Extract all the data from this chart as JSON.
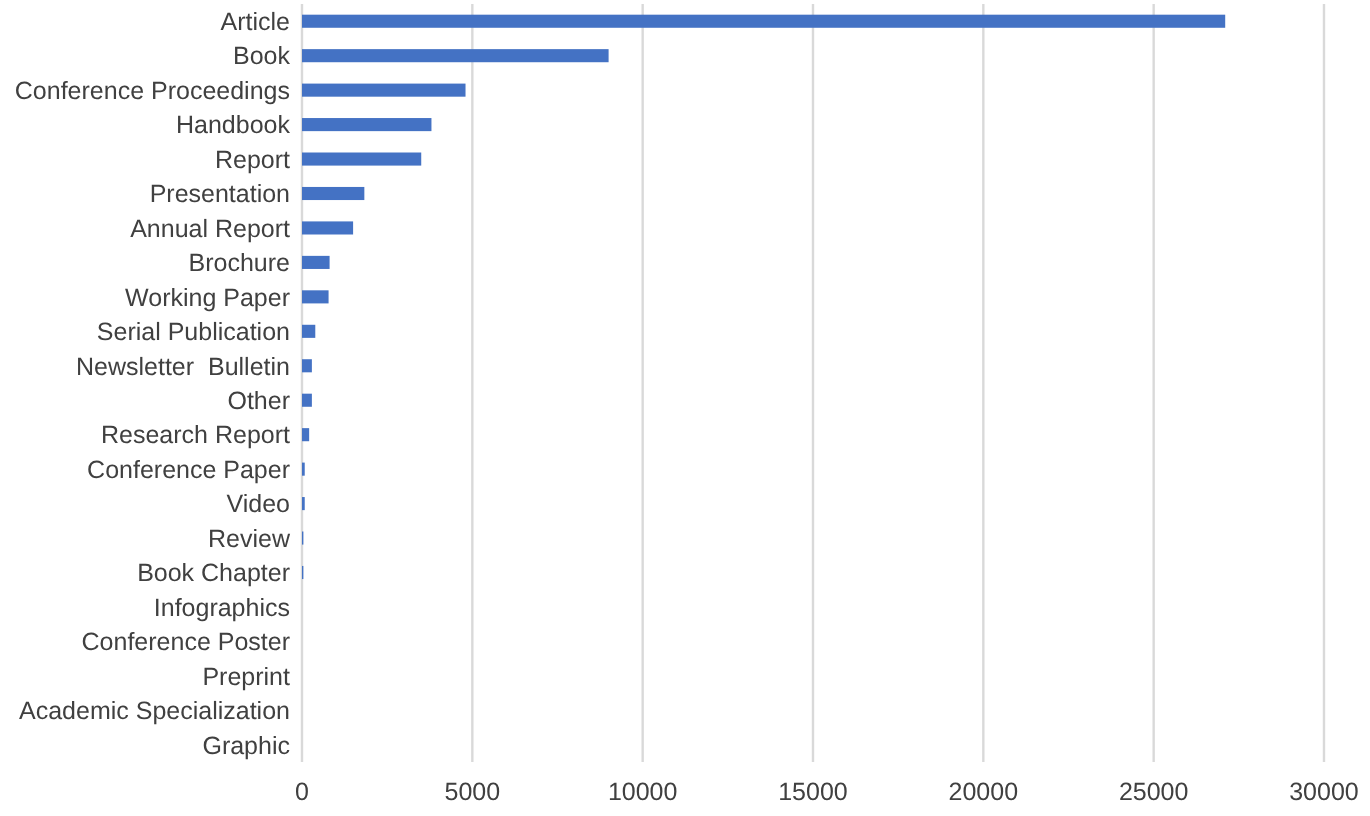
{
  "chart_data": {
    "type": "bar",
    "orientation": "horizontal",
    "categories": [
      "Article",
      "Book",
      "Conference Proceedings",
      "Handbook",
      "Report",
      "Presentation",
      "Annual Report",
      "Brochure",
      "Working Paper",
      "Serial Publication",
      "Newsletter  Bulletin",
      "Other",
      "Research Report",
      "Conference Paper",
      "Video",
      "Review",
      "Book Chapter",
      "Infographics",
      "Conference Poster",
      "Preprint",
      "Academic Specialization",
      "Graphic"
    ],
    "values": [
      27100,
      9000,
      4800,
      3800,
      3500,
      1830,
      1500,
      810,
      780,
      390,
      290,
      290,
      210,
      80,
      80,
      40,
      40,
      0,
      0,
      0,
      0,
      0
    ],
    "color": "#4472c4",
    "xlim": [
      0,
      30000
    ],
    "xticks": [
      0,
      5000,
      10000,
      15000,
      20000,
      25000,
      30000
    ],
    "grid": "x"
  }
}
